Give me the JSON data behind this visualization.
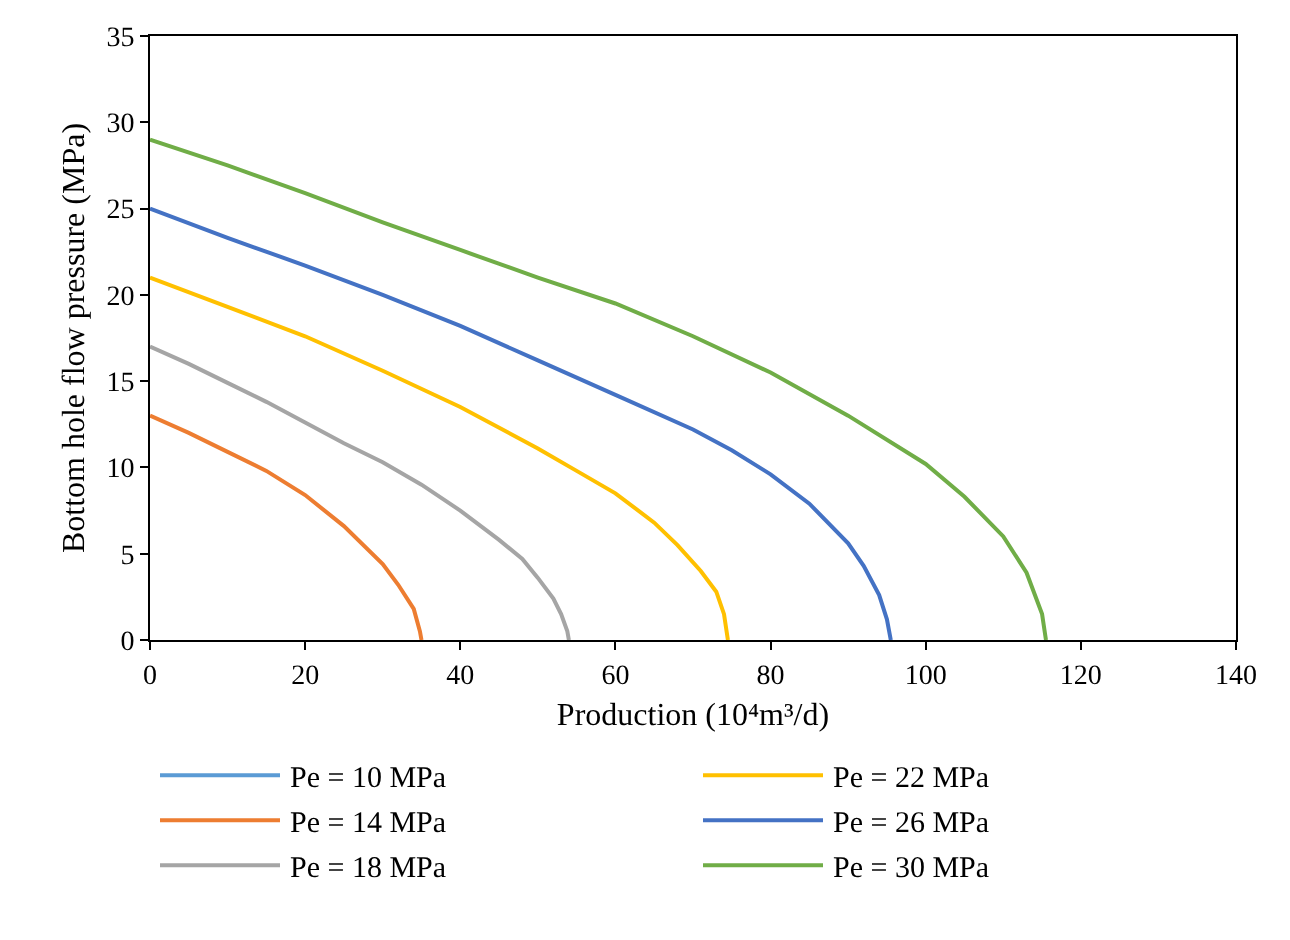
{
  "chart_data": {
    "type": "line",
    "xlabel": "Production (10⁴m³/d)",
    "ylabel": "Bottom hole flow pressure (MPa)",
    "xlim": [
      0,
      140
    ],
    "xticks": [
      0,
      20,
      40,
      60,
      80,
      100,
      120,
      140
    ],
    "ylim": [
      0,
      35
    ],
    "yticks": [
      0,
      5,
      10,
      15,
      20,
      25,
      30,
      35
    ],
    "legend": "bottom",
    "marker": "none",
    "line_style": "solid",
    "series": [
      {
        "name": "Pe = 10 MPa",
        "color": "#5b9bd5"
      },
      {
        "name": "Pe = 14 MPa",
        "color": "#ed7d31",
        "x": [
          0,
          5,
          10,
          15,
          20,
          25,
          30,
          32,
          34,
          34.8,
          35
        ],
        "values": [
          13,
          12.0,
          10.9,
          9.8,
          8.4,
          6.6,
          4.4,
          3.2,
          1.8,
          0.5,
          0
        ]
      },
      {
        "name": "Pe = 18 MPa",
        "color": "#a5a5a5",
        "x": [
          0,
          5,
          10,
          15,
          20,
          25,
          30,
          35,
          40,
          45,
          48,
          50,
          52,
          53,
          53.8,
          54
        ],
        "values": [
          17,
          16,
          14.9,
          13.8,
          12.6,
          11.4,
          10.3,
          9.0,
          7.5,
          5.8,
          4.7,
          3.6,
          2.4,
          1.5,
          0.5,
          0
        ]
      },
      {
        "name": "Pe = 22 MPa",
        "color": "#ffc000",
        "x": [
          0,
          10,
          20,
          30,
          40,
          50,
          55,
          60,
          65,
          68,
          71,
          73,
          74,
          74.5
        ],
        "values": [
          21,
          19.3,
          17.6,
          15.6,
          13.5,
          11.1,
          9.8,
          8.5,
          6.8,
          5.5,
          4.0,
          2.8,
          1.5,
          0
        ]
      },
      {
        "name": "Pe = 26 MPa",
        "color": "#4472c4",
        "x": [
          0,
          10,
          20,
          30,
          40,
          50,
          60,
          70,
          75,
          80,
          85,
          90,
          92,
          94,
          95,
          95.5
        ],
        "values": [
          25,
          23.3,
          21.7,
          20.0,
          18.2,
          16.2,
          14.2,
          12.2,
          11.0,
          9.6,
          7.9,
          5.6,
          4.3,
          2.6,
          1.2,
          0
        ]
      },
      {
        "name": "Pe = 30 MPa",
        "color": "#70ad47",
        "x": [
          0,
          10,
          20,
          30,
          40,
          50,
          60,
          70,
          80,
          90,
          100,
          105,
          110,
          113,
          115,
          115.5
        ],
        "values": [
          29,
          27.5,
          25.9,
          24.2,
          22.6,
          21.0,
          19.5,
          17.6,
          15.5,
          13.0,
          10.2,
          8.3,
          6.0,
          3.9,
          1.5,
          0
        ]
      }
    ]
  }
}
